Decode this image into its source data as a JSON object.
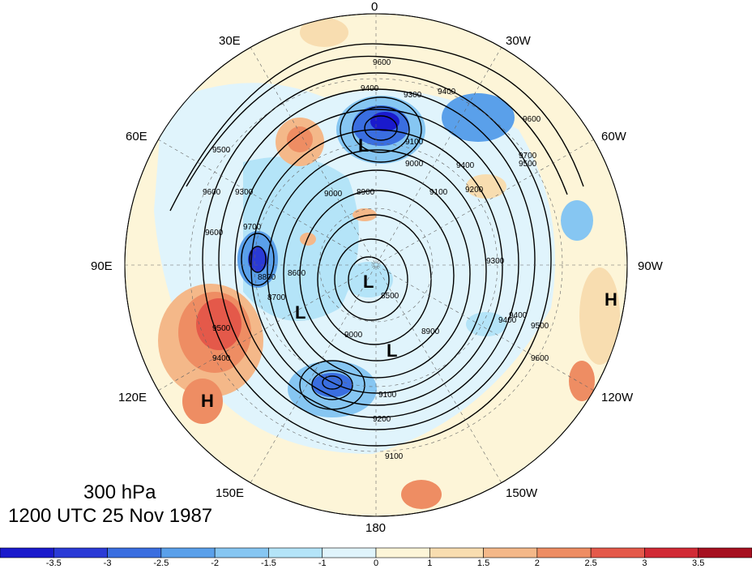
{
  "map": {
    "pressure_level": "300 hPa",
    "valid_time": "1200 UTC 25 Nov 1987",
    "longitude_labels": [
      "0",
      "30W",
      "60W",
      "90W",
      "120W",
      "150W",
      "180",
      "150E",
      "120E",
      "90E",
      "60E",
      "30E"
    ],
    "contour_labels": [
      "9600",
      "9400",
      "9300",
      "9400",
      "9600",
      "9500",
      "9400",
      "9200",
      "9100",
      "9000",
      "8900",
      "8800",
      "8700",
      "8600",
      "8500",
      "9000",
      "9100",
      "9200",
      "9300",
      "9400",
      "9500",
      "9600",
      "9700",
      "9100",
      "9400",
      "9600",
      "9500",
      "9700",
      "9600",
      "9500",
      "9400",
      "9300",
      "9100",
      "9000",
      "8900"
    ],
    "pressure_centers": [
      {
        "label": "L"
      },
      {
        "label": "L"
      },
      {
        "label": "L"
      },
      {
        "label": "L"
      },
      {
        "label": "H"
      },
      {
        "label": "H"
      }
    ],
    "shading_field": "anomaly",
    "colors": {
      "contour": "#000000",
      "background": "#ffffff"
    }
  },
  "colorbar": {
    "ticks": [
      "-3.5",
      "-3",
      "-2.5",
      "-2",
      "-1.5",
      "-1",
      "0",
      "1",
      "1.5",
      "2",
      "2.5",
      "3",
      "3.5"
    ],
    "colors": [
      "#1a1acc",
      "#2a3ad6",
      "#3a6ee0",
      "#5aa0ea",
      "#86c6f2",
      "#b4e4f8",
      "#e0f4fc",
      "#fdf5d8",
      "#f8ddb0",
      "#f4b889",
      "#ee8d63",
      "#e4594a",
      "#d12a35",
      "#a61020"
    ]
  }
}
